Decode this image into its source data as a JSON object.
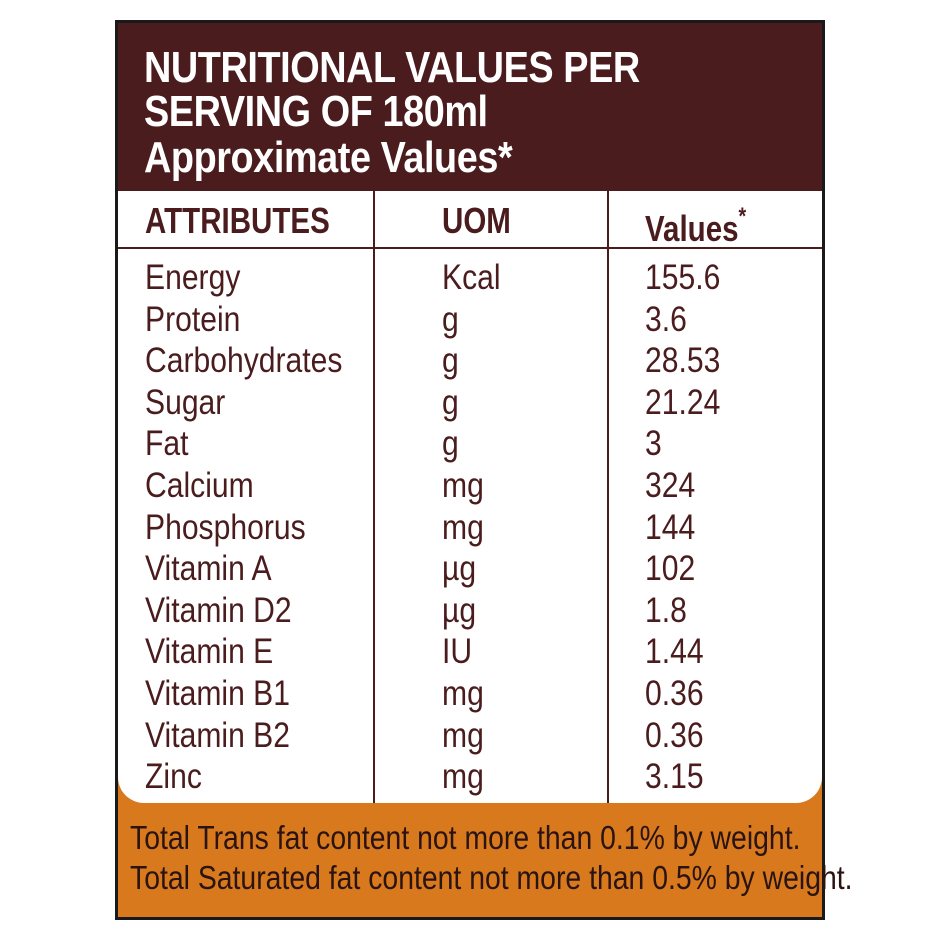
{
  "header": {
    "line1": "NUTRITIONAL VALUES PER",
    "line2": "SERVING OF 180ml",
    "line3": "Approximate Values*"
  },
  "table": {
    "columns": [
      {
        "label": "ATTRIBUTES"
      },
      {
        "label": "UOM"
      },
      {
        "label": "Values",
        "mark": "*"
      }
    ],
    "rows": [
      {
        "attribute": "Energy",
        "uom": "Kcal",
        "value": "155.6"
      },
      {
        "attribute": "Protein",
        "uom": "g",
        "value": "3.6"
      },
      {
        "attribute": "Carbohydrates",
        "uom": "g",
        "value": "28.53"
      },
      {
        "attribute": "Sugar",
        "uom": "g",
        "value": "21.24"
      },
      {
        "attribute": "Fat",
        "uom": "g",
        "value": "3"
      },
      {
        "attribute": "Calcium",
        "uom": "mg",
        "value": "324"
      },
      {
        "attribute": "Phosphorus",
        "uom": "mg",
        "value": "144"
      },
      {
        "attribute": "Vitamin A",
        "uom": "µg",
        "value": "102"
      },
      {
        "attribute": "Vitamin D2",
        "uom": "µg",
        "value": "1.8"
      },
      {
        "attribute": "Vitamin E",
        "uom": "IU",
        "value": "1.44"
      },
      {
        "attribute": "Vitamin B1",
        "uom": "mg",
        "value": "0.36"
      },
      {
        "attribute": "Vitamin B2",
        "uom": "mg",
        "value": "0.36"
      },
      {
        "attribute": "Zinc",
        "uom": "mg",
        "value": "3.15"
      }
    ]
  },
  "footer": {
    "line1": "Total Trans fat content not more than 0.1% by weight.",
    "line2": "Total Saturated fat content not more than 0.5% by weight."
  },
  "colors": {
    "header_bg": "#4a1c1e",
    "footer_bg": "#d9791e",
    "text": "#4a1c1e"
  }
}
